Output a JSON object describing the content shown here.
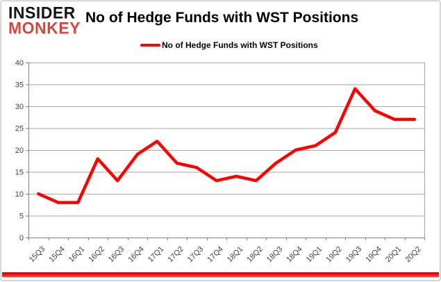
{
  "logo": {
    "line1": "INSIDER",
    "line2": "MONKEY"
  },
  "header": {
    "title": "No of Hedge Funds with WST Positions"
  },
  "legend": {
    "label": "No of Hedge Funds with WST Positions"
  },
  "chart_data": {
    "type": "line",
    "title": "No of Hedge Funds with WST Positions",
    "categories": [
      "15Q3",
      "15Q4",
      "16Q1",
      "16Q2",
      "16Q3",
      "16Q4",
      "17Q1",
      "17Q2",
      "17Q3",
      "17Q4",
      "18Q1",
      "18Q2",
      "18Q3",
      "18Q4",
      "19Q1",
      "19Q2",
      "19Q3",
      "19Q4",
      "20Q1",
      "20Q2"
    ],
    "series": [
      {
        "name": "No of Hedge Funds with WST Positions",
        "color": "#fe0000",
        "values": [
          10,
          8,
          8,
          18,
          13,
          19,
          22,
          17,
          16,
          13,
          14,
          13,
          17,
          20,
          21,
          24,
          34,
          29,
          27,
          27
        ]
      }
    ],
    "xlabel": "",
    "ylabel": "",
    "ylim": [
      0,
      40
    ],
    "yticks": [
      0,
      5,
      10,
      15,
      20,
      25,
      30,
      35,
      40
    ],
    "grid": "horizontal",
    "legend_position": "top"
  },
  "colors": {
    "line": "#fe0000",
    "gridline": "#a6a6a6",
    "axis": "#808080",
    "tick_label": "#3f3f3f"
  }
}
